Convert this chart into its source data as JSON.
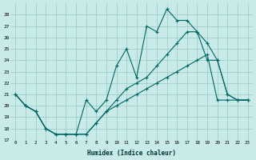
{
  "xlabel": "Humidex (Indice chaleur)",
  "bg_color": "#c8eae8",
  "grid_color": "#98c8c4",
  "line_color": "#006666",
  "xlim": [
    -0.5,
    23.5
  ],
  "ylim": [
    17,
    29
  ],
  "yticks": [
    17,
    18,
    19,
    20,
    21,
    22,
    23,
    24,
    25,
    26,
    27,
    28
  ],
  "xticks": [
    0,
    1,
    2,
    3,
    4,
    5,
    6,
    7,
    8,
    9,
    10,
    11,
    12,
    13,
    14,
    15,
    16,
    17,
    18,
    19,
    20,
    21,
    22,
    23
  ],
  "line1_x": [
    0,
    1,
    2,
    3,
    4,
    5,
    6,
    7,
    8,
    9,
    10,
    11,
    12,
    13,
    14,
    15,
    16,
    17,
    18,
    19,
    20,
    21,
    22,
    23
  ],
  "line1_y": [
    21.0,
    20.0,
    19.5,
    18.0,
    17.5,
    17.5,
    17.5,
    17.5,
    18.5,
    19.5,
    20.0,
    20.5,
    21.0,
    21.5,
    22.0,
    22.5,
    23.0,
    23.5,
    24.0,
    24.5,
    20.5,
    20.5,
    20.5,
    20.5
  ],
  "line2_x": [
    0,
    1,
    2,
    3,
    4,
    5,
    6,
    7,
    8,
    9,
    10,
    11,
    12,
    13,
    14,
    15,
    16,
    17,
    18,
    19,
    20,
    21,
    22,
    23
  ],
  "line2_y": [
    21.0,
    20.0,
    19.5,
    18.0,
    17.5,
    17.5,
    17.5,
    20.5,
    19.5,
    20.5,
    23.5,
    25.0,
    22.5,
    27.0,
    26.5,
    28.5,
    27.5,
    27.5,
    26.5,
    24.0,
    24.0,
    21.0,
    20.5,
    20.5
  ],
  "line3_x": [
    0,
    1,
    2,
    3,
    4,
    5,
    6,
    7,
    8,
    9,
    10,
    11,
    12,
    13,
    14,
    15,
    16,
    17,
    18,
    19,
    20,
    21,
    22,
    23
  ],
  "line3_y": [
    21.0,
    20.0,
    19.5,
    18.0,
    17.5,
    17.5,
    17.5,
    17.5,
    18.5,
    19.5,
    20.5,
    21.5,
    22.0,
    22.5,
    23.5,
    24.5,
    25.5,
    26.5,
    26.5,
    25.5,
    24.0,
    21.0,
    20.5,
    20.5
  ]
}
